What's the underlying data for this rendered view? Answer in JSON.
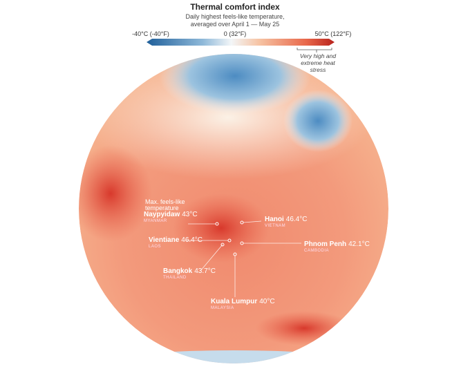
{
  "title": "Thermal comfort index",
  "subtitle": [
    "Daily highest feels-like temperature,",
    "averaged over April 1 — May 25"
  ],
  "legend": {
    "labels": [
      "-40°C (-40°F)",
      "0 (32°F)",
      "50°C (122°F)"
    ],
    "note": [
      "Very high and",
      "extreme heat",
      "stress"
    ]
  },
  "annotation": [
    "Max. feels-like",
    "temperature"
  ],
  "cities": [
    {
      "name": "Naypyidaw",
      "temp": "43°C",
      "country": "MYANMAR"
    },
    {
      "name": "Hanoi",
      "temp": "46.4°C",
      "country": "VIETNAM"
    },
    {
      "name": "Vientiane",
      "temp": "46.4°C",
      "country": "LAOS"
    },
    {
      "name": "Phnom Penh",
      "temp": "42.1°C",
      "country": "CAMBODIA"
    },
    {
      "name": "Bangkok",
      "temp": "43.7°C",
      "country": "THAILAND"
    },
    {
      "name": "Kuala Lumpur",
      "temp": "40°C",
      "country": "MALAYSIA"
    }
  ]
}
